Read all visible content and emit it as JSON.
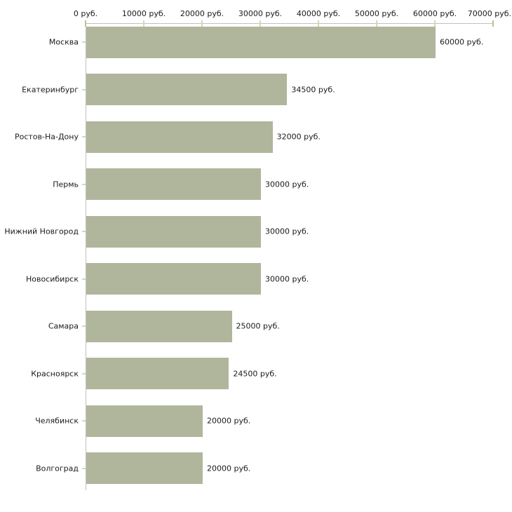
{
  "chart_data": {
    "type": "bar",
    "orientation": "horizontal",
    "title": "",
    "xlabel": "",
    "ylabel": "",
    "unit": "руб.",
    "categories": [
      "Москва",
      "Екатеринбург",
      "Ростов-На-Дону",
      "Пермь",
      "Нижний Новгород",
      "Новосибирск",
      "Самара",
      "Красноярск",
      "Челябинск",
      "Волгоград"
    ],
    "values": [
      60000,
      34500,
      32000,
      30000,
      30000,
      30000,
      25000,
      24500,
      20000,
      20000
    ],
    "value_labels": [
      "60000 руб.",
      "34500 руб.",
      "32000 руб.",
      "30000 руб.",
      "30000 руб.",
      "30000 руб.",
      "25000 руб.",
      "24500 руб.",
      "20000 руб.",
      "20000 руб."
    ],
    "x_tick_values": [
      0,
      10000,
      20000,
      30000,
      40000,
      50000,
      60000,
      70000
    ],
    "x_tick_labels": [
      "0 руб.",
      "10000 руб.",
      "20000 руб.",
      "30000 руб.",
      "40000 руб.",
      "50000 руб.",
      "60000 руб.",
      "70000 руб."
    ],
    "xlim": [
      0,
      70000
    ],
    "grid": false,
    "legend": false,
    "colors": {
      "bar_fill": "#b0b69c",
      "axis_line": "#c0c0c0",
      "end_tick": "#c6bb93",
      "mid_tick": "#d6d8b0",
      "category_tick": "#d6d8b0",
      "text": "#1a1a1a",
      "background": "#ffffff"
    }
  }
}
